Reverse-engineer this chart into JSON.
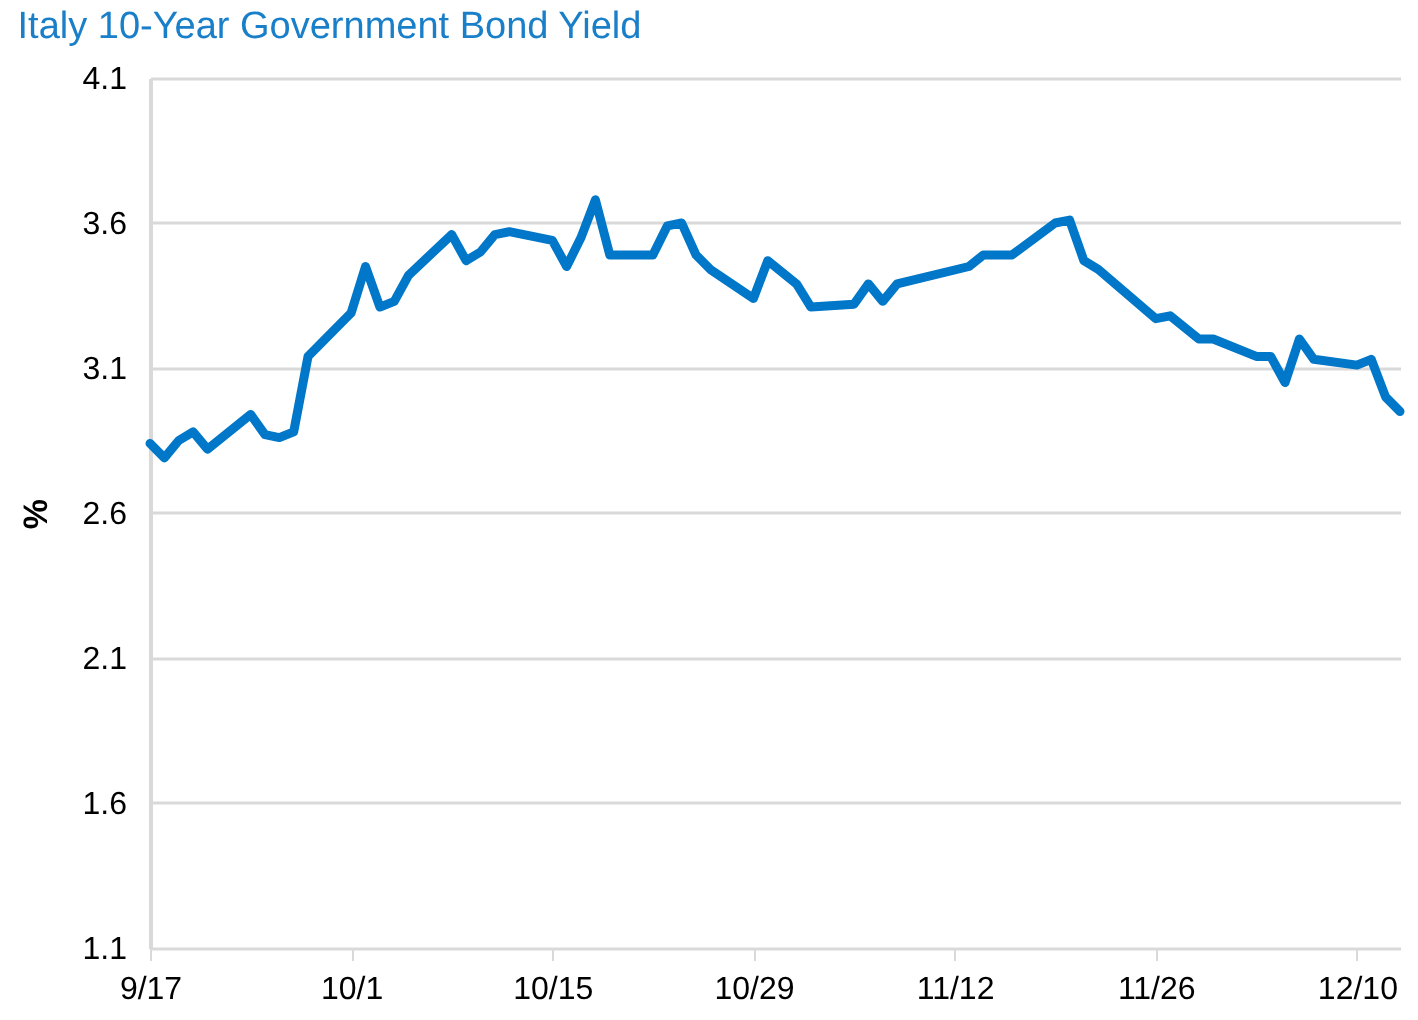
{
  "chart_data": {
    "type": "line",
    "title": "Italy 10-Year Government Bond Yield",
    "ylabel": "%",
    "x": [
      "--09-17",
      "--09-18",
      "--09-19",
      "--09-20",
      "--09-21",
      "--09-24",
      "--09-25",
      "--09-26",
      "--09-27",
      "--09-28",
      "--10-01",
      "--10-02",
      "--10-03",
      "--10-04",
      "--10-05",
      "--10-08",
      "--10-09",
      "--10-10",
      "--10-11",
      "--10-12",
      "--10-15",
      "--10-16",
      "--10-17",
      "--10-18",
      "--10-19",
      "--10-22",
      "--10-23",
      "--10-24",
      "--10-25",
      "--10-26",
      "--10-29",
      "--10-30",
      "--11-01",
      "--11-02",
      "--11-05",
      "--11-06",
      "--11-07",
      "--11-08",
      "--11-13",
      "--11-14",
      "--11-16",
      "--11-19",
      "--11-20",
      "--11-21",
      "--11-22",
      "--11-26",
      "--11-27",
      "--11-29",
      "--11-30",
      "--12-03",
      "--12-04",
      "--12-05",
      "--12-06",
      "--12-07",
      "--12-10",
      "--12-11",
      "--12-12",
      "--12-13"
    ],
    "series": [
      {
        "color": "#0077c8",
        "values": [
          2.84,
          2.79,
          2.85,
          2.88,
          2.82,
          2.94,
          2.87,
          2.86,
          2.88,
          3.14,
          3.29,
          3.45,
          3.31,
          3.33,
          3.42,
          3.56,
          3.47,
          3.5,
          3.56,
          3.57,
          3.54,
          3.45,
          3.55,
          3.68,
          3.49,
          3.49,
          3.59,
          3.6,
          3.49,
          3.44,
          3.34,
          3.47,
          3.39,
          3.31,
          3.32,
          3.39,
          3.33,
          3.39,
          3.45,
          3.49,
          3.49,
          3.6,
          3.61,
          3.47,
          3.44,
          3.27,
          3.28,
          3.2,
          3.2,
          3.14,
          3.14,
          3.05,
          3.2,
          3.13,
          3.11,
          3.13,
          3.0,
          2.95
        ]
      }
    ],
    "xlim": [
      "--09-17",
      "--12-13"
    ],
    "xticks": [
      {
        "value": "--09-17",
        "label": "9/17"
      },
      {
        "value": "--10-01",
        "label": "10/1"
      },
      {
        "value": "--10-15",
        "label": "10/15"
      },
      {
        "value": "--10-29",
        "label": "10/29"
      },
      {
        "value": "--11-12",
        "label": "11/12"
      },
      {
        "value": "--11-26",
        "label": "11/26"
      },
      {
        "value": "--12-10",
        "label": "12/10"
      }
    ],
    "ylim": [
      1.1,
      4.1
    ],
    "yticks": [
      1.1,
      1.6,
      2.1,
      2.6,
      3.1,
      3.6,
      4.1
    ],
    "grid": "y",
    "line_style": "solid",
    "marker": "none"
  }
}
